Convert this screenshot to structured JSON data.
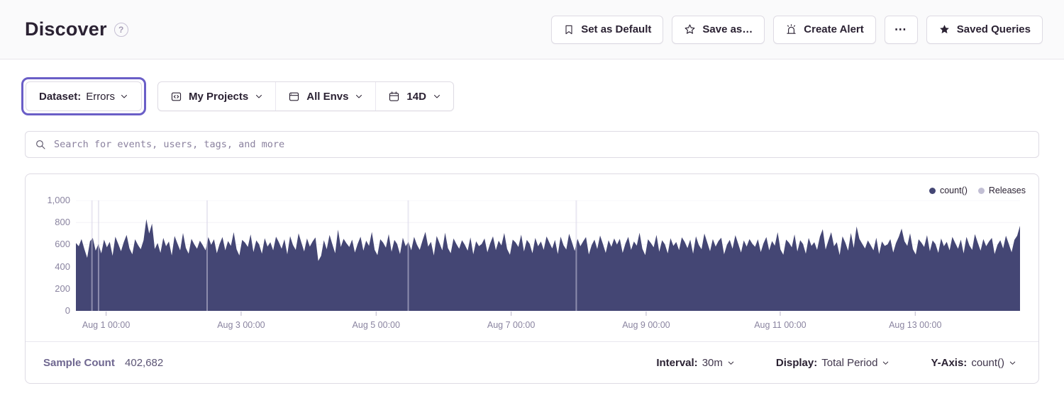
{
  "header": {
    "title": "Discover",
    "actions": {
      "set_default": "Set as Default",
      "save_as": "Save as…",
      "create_alert": "Create Alert",
      "more": "⋯",
      "saved_queries": "Saved Queries"
    }
  },
  "filters": {
    "dataset_label": "Dataset:",
    "dataset_value": "Errors",
    "projects": "My Projects",
    "environments": "All Envs",
    "date_range": "14D"
  },
  "search": {
    "placeholder": "Search for events, users, tags, and more"
  },
  "legend": {
    "count": "count()",
    "releases": "Releases"
  },
  "footer": {
    "sample_count_label": "Sample Count",
    "sample_count_value": "402,682",
    "interval_label": "Interval:",
    "interval_value": "30m",
    "display_label": "Display:",
    "display_value": "Total Period",
    "yaxis_label": "Y-Axis:",
    "yaxis_value": "count()"
  },
  "colors": {
    "accent": "#6A5EC7",
    "chart_fill": "#444674",
    "release_line": "rgba(214,210,230,0.5)",
    "grid_line": "#F3F2F7",
    "tick_mark": "#B9B4C8",
    "legend_count_dot": "#444674",
    "legend_releases_dot": "#C2BFD4"
  },
  "chart_data": {
    "type": "area",
    "series_name": "count()",
    "ylim": [
      0,
      1000
    ],
    "y_ticks": [
      0,
      200,
      400,
      600,
      800,
      1000
    ],
    "y_tick_labels": [
      "0",
      "200",
      "400",
      "600",
      "800",
      "1,000"
    ],
    "x_ticks": [
      {
        "label": "Aug 1 00:00",
        "f": 0.032
      },
      {
        "label": "Aug 3 00:00",
        "f": 0.175
      },
      {
        "label": "Aug 5 00:00",
        "f": 0.318
      },
      {
        "label": "Aug 7 00:00",
        "f": 0.461
      },
      {
        "label": "Aug 9 00:00",
        "f": 0.604
      },
      {
        "label": "Aug 11 00:00",
        "f": 0.746
      },
      {
        "label": "Aug 13 00:00",
        "f": 0.889
      }
    ],
    "release_lines_f": [
      0.017,
      0.024,
      0.139,
      0.352,
      0.53
    ],
    "values": [
      615,
      585,
      650,
      560,
      480,
      630,
      660,
      545,
      605,
      520,
      645,
      575,
      625,
      498,
      672,
      608,
      540,
      622,
      688,
      566,
      512,
      648,
      598,
      558,
      640,
      830,
      700,
      790,
      560,
      615,
      525,
      660,
      585,
      628,
      502,
      678,
      612,
      548,
      705,
      570,
      518,
      652,
      602,
      562,
      635,
      595,
      548,
      668,
      598,
      648,
      522,
      606,
      668,
      548,
      632,
      588,
      712,
      558,
      502,
      642,
      618,
      578,
      692,
      532,
      638,
      602,
      518,
      658,
      582,
      622,
      548,
      672,
      622,
      562,
      648,
      512,
      676,
      598,
      552,
      702,
      618,
      538,
      655,
      582,
      628,
      665,
      452,
      498,
      640,
      558,
      688,
      602,
      522,
      735,
      578,
      652,
      612,
      578,
      645,
      528,
      608,
      672,
      545,
      635,
      588,
      715,
      552,
      505,
      648,
      618,
      572,
      695,
      535,
      642,
      605,
      515,
      662,
      585,
      625,
      548,
      670,
      600,
      552,
      638,
      715,
      582,
      625,
      502,
      678,
      615,
      548,
      708,
      568,
      522,
      655,
      605,
      562,
      640,
      598,
      545,
      665,
      512,
      630,
      586,
      605,
      655,
      530,
      612,
      675,
      550,
      635,
      592,
      705,
      560,
      508,
      645,
      620,
      578,
      690,
      538,
      642,
      608,
      522,
      660,
      585,
      628,
      552,
      674,
      618,
      565,
      642,
      515,
      672,
      595,
      555,
      698,
      622,
      542,
      652,
      585,
      630,
      668,
      510,
      595,
      645,
      560,
      682,
      605,
      525,
      640,
      580,
      655,
      600,
      652,
      525,
      610,
      670,
      552,
      628,
      590,
      708,
      562,
      505,
      648,
      615,
      575,
      688,
      535,
      640,
      602,
      520,
      658,
      588,
      624,
      550,
      666,
      625,
      568,
      645,
      518,
      675,
      598,
      558,
      700,
      620,
      540,
      650,
      582,
      632,
      662,
      512,
      598,
      642,
      562,
      685,
      608,
      528,
      638,
      582,
      650,
      608,
      580,
      648,
      532,
      612,
      668,
      548,
      632,
      590,
      712,
      555,
      508,
      645,
      618,
      575,
      692,
      538,
      640,
      605,
      518,
      660,
      588,
      622,
      552,
      672,
      740,
      555,
      635,
      712,
      585,
      622,
      505,
      675,
      618,
      545,
      705,
      570,
      765,
      652,
      608,
      565,
      638,
      595,
      548,
      662,
      515,
      628,
      588,
      602,
      650,
      528,
      615,
      672,
      745,
      630,
      588,
      702,
      558,
      510,
      648,
      618,
      578,
      685,
      540,
      638,
      605,
      525,
      655,
      585,
      625,
      548,
      670,
      615,
      562,
      645,
      520,
      670,
      595,
      552,
      695,
      618,
      545,
      650,
      585,
      628,
      660,
      515,
      598,
      640,
      565,
      680,
      608,
      530,
      642,
      680,
      770
    ]
  }
}
